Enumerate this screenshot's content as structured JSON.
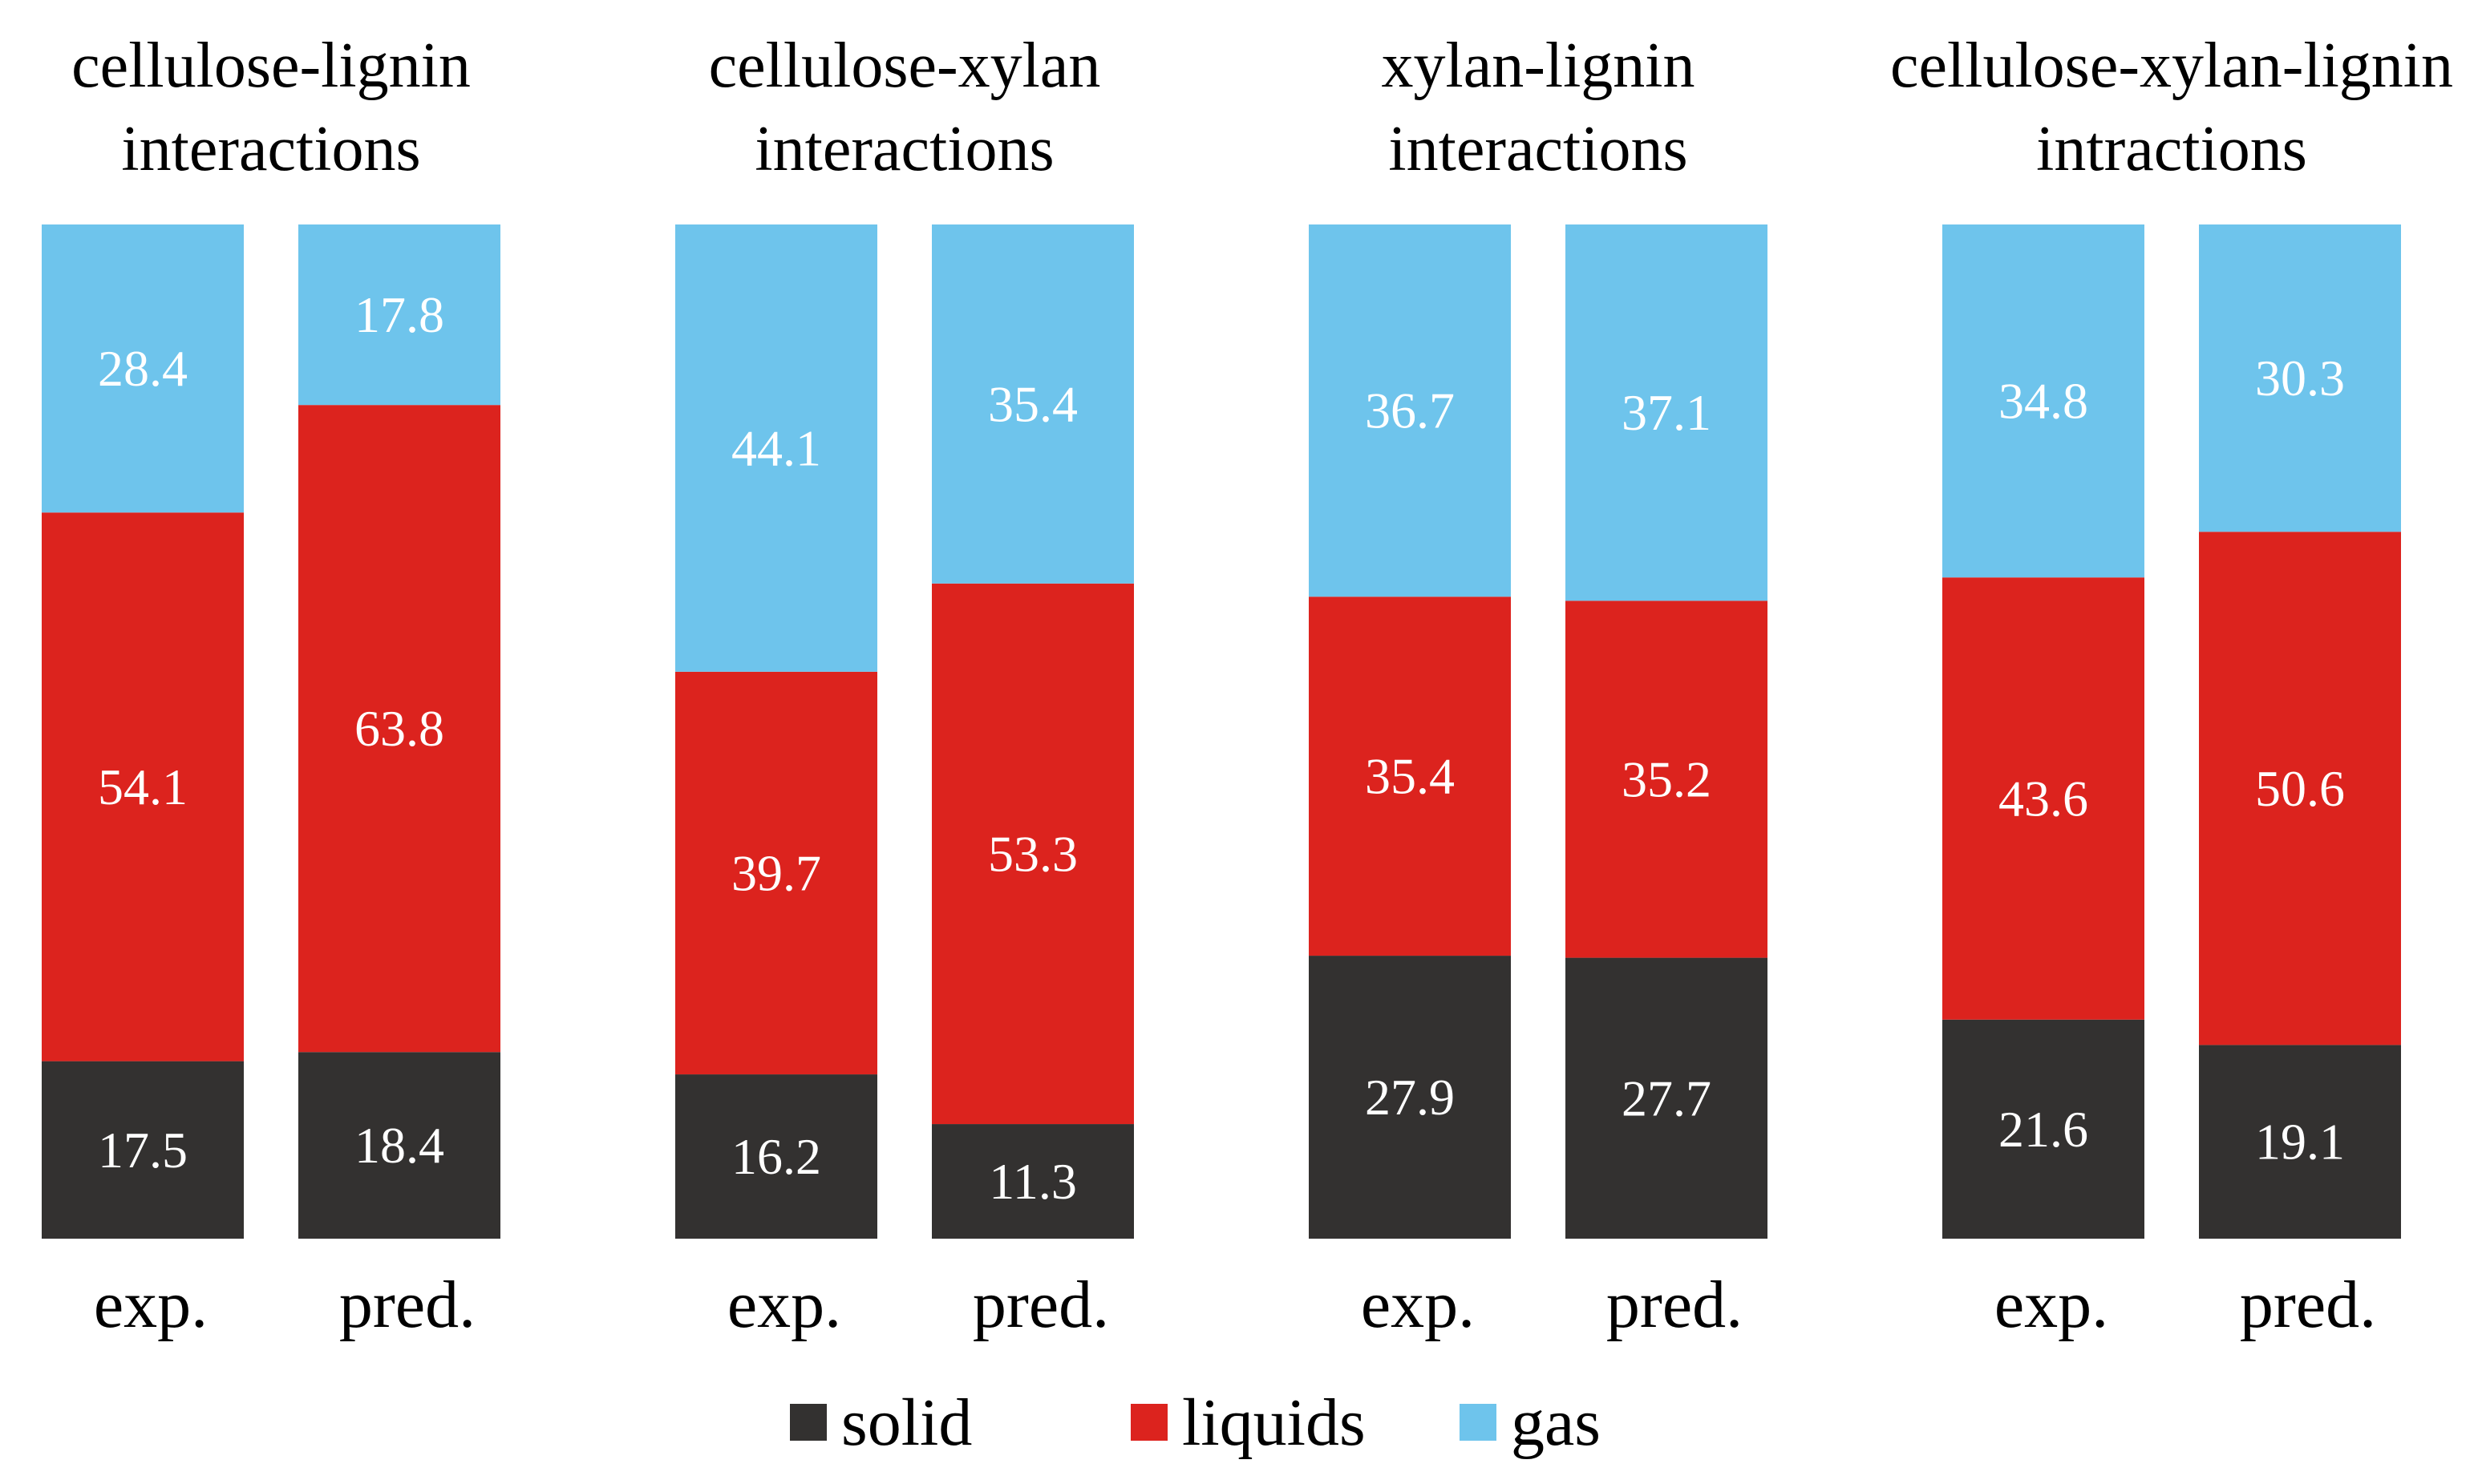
{
  "chart_data": {
    "type": "bar",
    "stacked": true,
    "normalized_percent": true,
    "groups": [
      {
        "title": [
          "cellulose-lignin",
          "interactions"
        ],
        "bars": [
          {
            "category": "exp.",
            "values": {
              "solid": 17.5,
              "liquids": 54.1,
              "gas": 28.4
            }
          },
          {
            "category": "pred.",
            "values": {
              "solid": 18.4,
              "liquids": 63.8,
              "gas": 17.8
            }
          }
        ]
      },
      {
        "title": [
          "cellulose-xylan",
          "interactions"
        ],
        "bars": [
          {
            "category": "exp.",
            "values": {
              "solid": 16.2,
              "liquids": 39.7,
              "gas": 44.1
            }
          },
          {
            "category": "pred.",
            "values": {
              "solid": 11.3,
              "liquids": 53.3,
              "gas": 35.4
            }
          }
        ]
      },
      {
        "title": [
          "xylan-lignin",
          "interactions"
        ],
        "bars": [
          {
            "category": "exp.",
            "values": {
              "solid": 27.9,
              "liquids": 35.4,
              "gas": 36.7
            }
          },
          {
            "category": "pred.",
            "values": {
              "solid": 27.7,
              "liquids": 35.2,
              "gas": 37.1
            }
          }
        ]
      },
      {
        "title": [
          "cellulose-xylan-lignin",
          "intractions"
        ],
        "bars": [
          {
            "category": "exp.",
            "values": {
              "solid": 21.6,
              "liquids": 43.6,
              "gas": 34.8
            }
          },
          {
            "category": "pred.",
            "values": {
              "solid": 19.1,
              "liquids": 50.6,
              "gas": 30.3
            }
          }
        ]
      }
    ],
    "series": [
      {
        "key": "solid",
        "name": "solid",
        "color": "#333130"
      },
      {
        "key": "liquids",
        "name": "liquids",
        "color": "#dc231e"
      },
      {
        "key": "gas",
        "name": "gas",
        "color": "#6ec4ec"
      }
    ],
    "legend_position": "bottom-center"
  }
}
